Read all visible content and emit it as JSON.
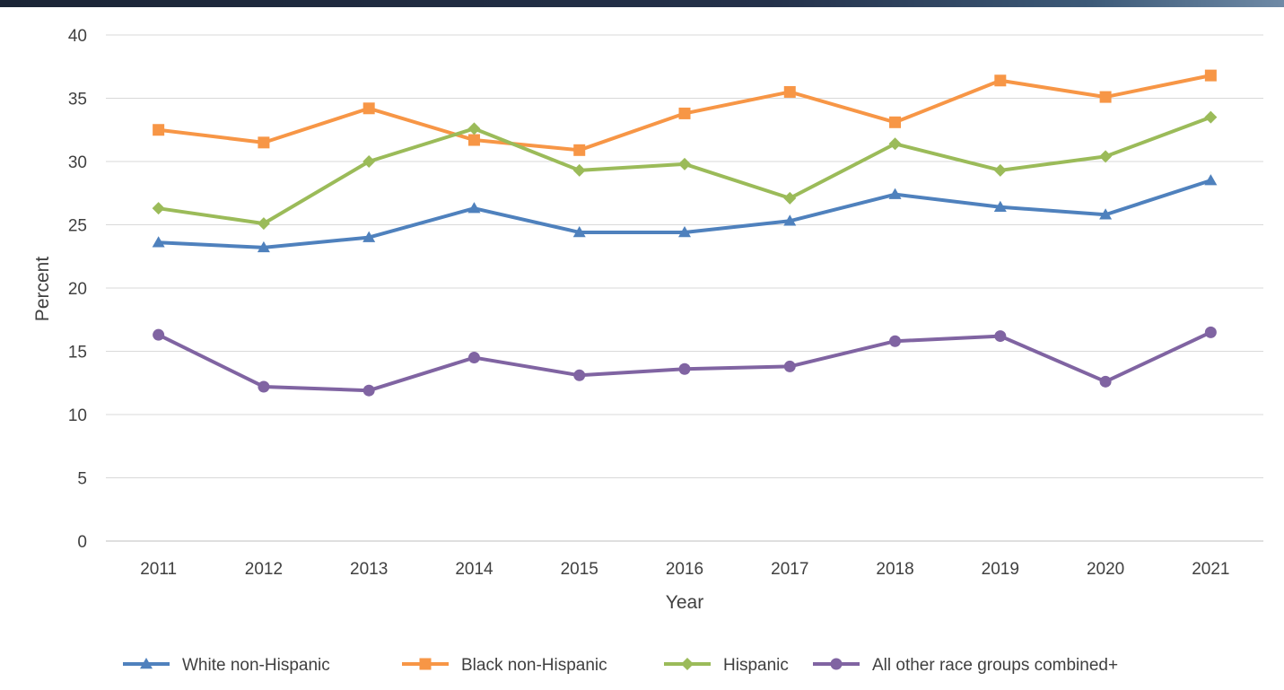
{
  "chart_data": {
    "type": "line",
    "title": "",
    "xlabel": "Year",
    "ylabel": "Percent",
    "categories": [
      "2011",
      "2012",
      "2013",
      "2014",
      "2015",
      "2016",
      "2017",
      "2018",
      "2019",
      "2020",
      "2021"
    ],
    "ylim": [
      0,
      40
    ],
    "yticks": [
      "0",
      "5",
      "10",
      "15",
      "20",
      "25",
      "30",
      "35",
      "40"
    ],
    "grid": true,
    "legend_position": "bottom",
    "series": [
      {
        "name": "White non-Hispanic",
        "color": "#4f81bd",
        "marker": "triangle",
        "values": [
          23.6,
          23.2,
          24.0,
          26.3,
          24.4,
          24.4,
          25.3,
          27.4,
          26.4,
          25.8,
          28.5
        ]
      },
      {
        "name": "Black non-Hispanic",
        "color": "#f79646",
        "marker": "square",
        "values": [
          32.5,
          31.5,
          34.2,
          31.7,
          30.9,
          33.8,
          35.5,
          33.1,
          36.4,
          35.1,
          36.8
        ]
      },
      {
        "name": "Hispanic",
        "color": "#9bbb59",
        "marker": "diamond",
        "values": [
          26.3,
          25.1,
          30.0,
          32.6,
          29.3,
          29.8,
          27.1,
          31.4,
          29.3,
          30.4,
          33.5
        ]
      },
      {
        "name": "All other race groups combined+",
        "color": "#8064a2",
        "marker": "circle",
        "values": [
          16.3,
          12.2,
          11.9,
          14.5,
          13.1,
          13.6,
          13.8,
          15.8,
          16.2,
          12.6,
          16.5
        ]
      }
    ]
  }
}
